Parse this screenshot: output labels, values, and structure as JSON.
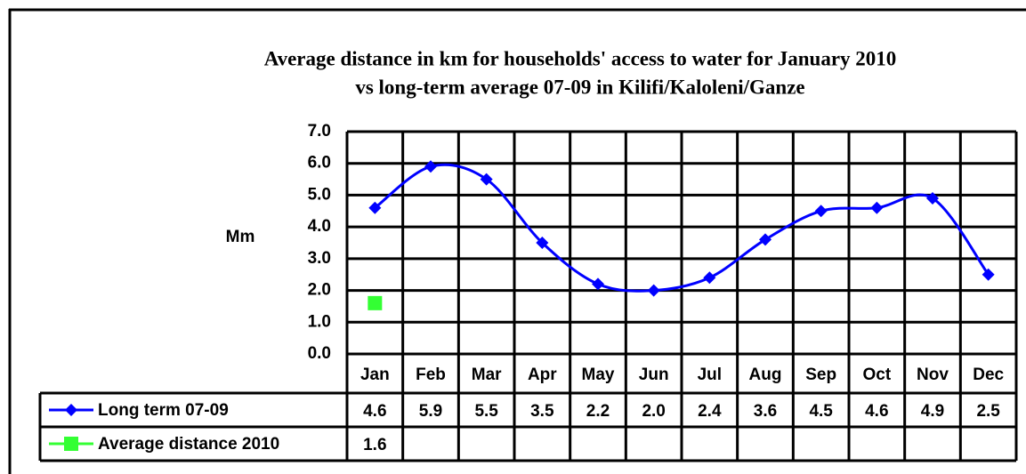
{
  "chart_data": {
    "type": "line",
    "title": [
      "Average distance in km for households' access to water for January 2010",
      "vs long-term average 07-09 in Kilifi/Kaloleni/Ganze"
    ],
    "y_label": "Mm",
    "categories": [
      "Jan",
      "Feb",
      "Mar",
      "Apr",
      "May",
      "Jun",
      "Jul",
      "Aug",
      "Sep",
      "Oct",
      "Nov",
      "Dec"
    ],
    "series": [
      {
        "name": "Long term 07-09",
        "color": "#0000ff",
        "marker": "diamond",
        "smooth": true,
        "values": [
          4.6,
          5.9,
          5.5,
          3.5,
          2.2,
          2.0,
          2.4,
          3.6,
          4.5,
          4.6,
          4.9,
          2.5
        ],
        "value_labels": [
          "4.6",
          "5.9",
          "5.5",
          "3.5",
          "2.2",
          "2.0",
          "2.4",
          "3.6",
          "4.5",
          "4.6",
          "4.9",
          "2.5"
        ]
      },
      {
        "name": "Average distance 2010",
        "color": "#33ff33",
        "marker": "square",
        "values": [
          1.6,
          null,
          null,
          null,
          null,
          null,
          null,
          null,
          null,
          null,
          null,
          null
        ],
        "value_labels": [
          "1.6",
          null,
          null,
          null,
          null,
          null,
          null,
          null,
          null,
          null,
          null,
          null
        ]
      }
    ],
    "ylim": [
      0,
      7
    ],
    "yticks": [
      {
        "value": 0,
        "label": "0.0"
      },
      {
        "value": 1,
        "label": "1.0"
      },
      {
        "value": 2,
        "label": "2.0"
      },
      {
        "value": 3,
        "label": "3.0"
      },
      {
        "value": 4,
        "label": "4.0"
      },
      {
        "value": 5,
        "label": "5.0"
      },
      {
        "value": 6,
        "label": "6.0"
      },
      {
        "value": 7,
        "label": "7.0"
      }
    ],
    "grid": true,
    "data_table": true
  }
}
